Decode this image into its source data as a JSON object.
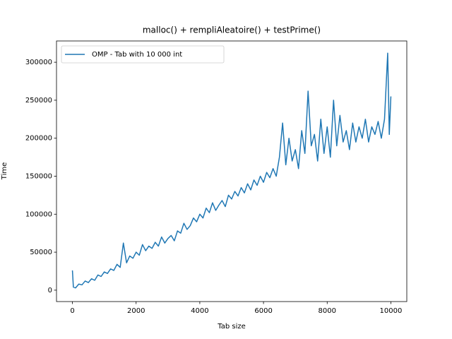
{
  "chart_data": {
    "type": "line",
    "title": "malloc() + rempliAleatoire() + testPrime()",
    "x_label": "Tab size",
    "y_label": "Time",
    "legend": "upper left",
    "x": [
      0,
      30,
      100,
      200,
      300,
      400,
      500,
      600,
      700,
      800,
      900,
      1000,
      1100,
      1200,
      1300,
      1400,
      1500,
      1600,
      1700,
      1800,
      1900,
      2000,
      2100,
      2200,
      2300,
      2400,
      2500,
      2600,
      2700,
      2800,
      2900,
      3000,
      3100,
      3200,
      3300,
      3400,
      3500,
      3600,
      3700,
      3800,
      3900,
      4000,
      4100,
      4200,
      4300,
      4400,
      4500,
      4600,
      4700,
      4800,
      4900,
      5000,
      5100,
      5200,
      5300,
      5400,
      5500,
      5600,
      5700,
      5800,
      5900,
      6000,
      6100,
      6200,
      6300,
      6400,
      6500,
      6600,
      6700,
      6800,
      6900,
      7000,
      7100,
      7200,
      7300,
      7400,
      7500,
      7600,
      7700,
      7800,
      7900,
      8000,
      8100,
      8200,
      8300,
      8400,
      8500,
      8600,
      8700,
      8800,
      8900,
      9000,
      9100,
      9200,
      9300,
      9400,
      9500,
      9600,
      9700,
      9800,
      9900,
      9950,
      10000
    ],
    "series": [
      {
        "name": "OMP - Tab with 10 000 int",
        "color": "#1f77b4",
        "values": [
          26000,
          4000,
          3000,
          8000,
          7000,
          12000,
          10000,
          15000,
          13000,
          20000,
          18000,
          24000,
          22000,
          28000,
          26000,
          34000,
          30000,
          62000,
          36000,
          45000,
          42000,
          50000,
          46000,
          60000,
          52000,
          58000,
          55000,
          63000,
          58000,
          70000,
          62000,
          68000,
          72000,
          65000,
          78000,
          75000,
          88000,
          80000,
          85000,
          95000,
          90000,
          100000,
          95000,
          108000,
          102000,
          115000,
          105000,
          112000,
          118000,
          110000,
          125000,
          120000,
          130000,
          124000,
          135000,
          128000,
          140000,
          132000,
          145000,
          138000,
          150000,
          142000,
          155000,
          148000,
          160000,
          150000,
          175000,
          220000,
          165000,
          200000,
          170000,
          185000,
          160000,
          210000,
          180000,
          262000,
          190000,
          205000,
          170000,
          225000,
          180000,
          215000,
          175000,
          250000,
          190000,
          230000,
          195000,
          210000,
          185000,
          220000,
          195000,
          215000,
          200000,
          225000,
          195000,
          215000,
          205000,
          222000,
          200000,
          225000,
          312000,
          205000,
          255000
        ]
      }
    ],
    "xlim": [
      -500,
      10500
    ],
    "ylim": [
      -15000,
      328000
    ],
    "xticks": [
      0,
      2000,
      4000,
      6000,
      8000,
      10000
    ],
    "yticks": [
      0,
      50000,
      100000,
      150000,
      200000,
      250000,
      300000
    ]
  }
}
